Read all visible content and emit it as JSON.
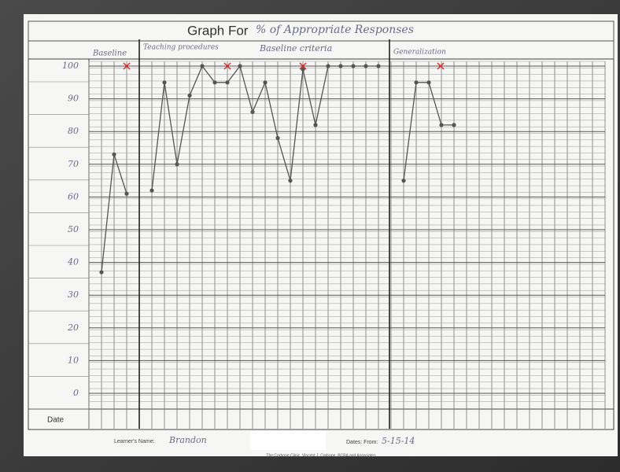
{
  "chart_data": {
    "type": "line",
    "title": "Graph For",
    "subtitle": "% of Appropriate Responses",
    "phases": [
      "Baseline",
      "Teaching procedures",
      "Baseline criteria",
      "Generalization"
    ],
    "x": [
      1,
      2,
      3,
      4,
      5,
      6,
      7,
      8,
      9,
      10,
      11,
      12,
      13,
      14,
      15,
      16,
      17,
      18,
      19,
      20,
      21,
      22,
      23,
      24,
      25,
      26,
      27,
      28,
      29
    ],
    "series": [
      {
        "name": "% of Appropriate Responses",
        "color": "#555555",
        "values": [
          37,
          73,
          61,
          null,
          62,
          95,
          70,
          91,
          100,
          95,
          95,
          100,
          86,
          95,
          78,
          65,
          99,
          82,
          100,
          100,
          100,
          100,
          100,
          null,
          65,
          95,
          95,
          82,
          82
        ]
      }
    ],
    "xlim": [
      0,
      41
    ],
    "ylim": [
      0,
      100
    ],
    "yticks": [
      100,
      90,
      80,
      70,
      60,
      50,
      40,
      30,
      20,
      10,
      0
    ],
    "grid": true,
    "date_label": "Date",
    "learner_label": "Learner's Name:",
    "learner_name": "Brandon",
    "dates_label": "Dates: From:",
    "dates_value": "5-15-14",
    "footer": "The Carbone Clinic, Vincent J. Carbone, BCBA and Associates"
  }
}
